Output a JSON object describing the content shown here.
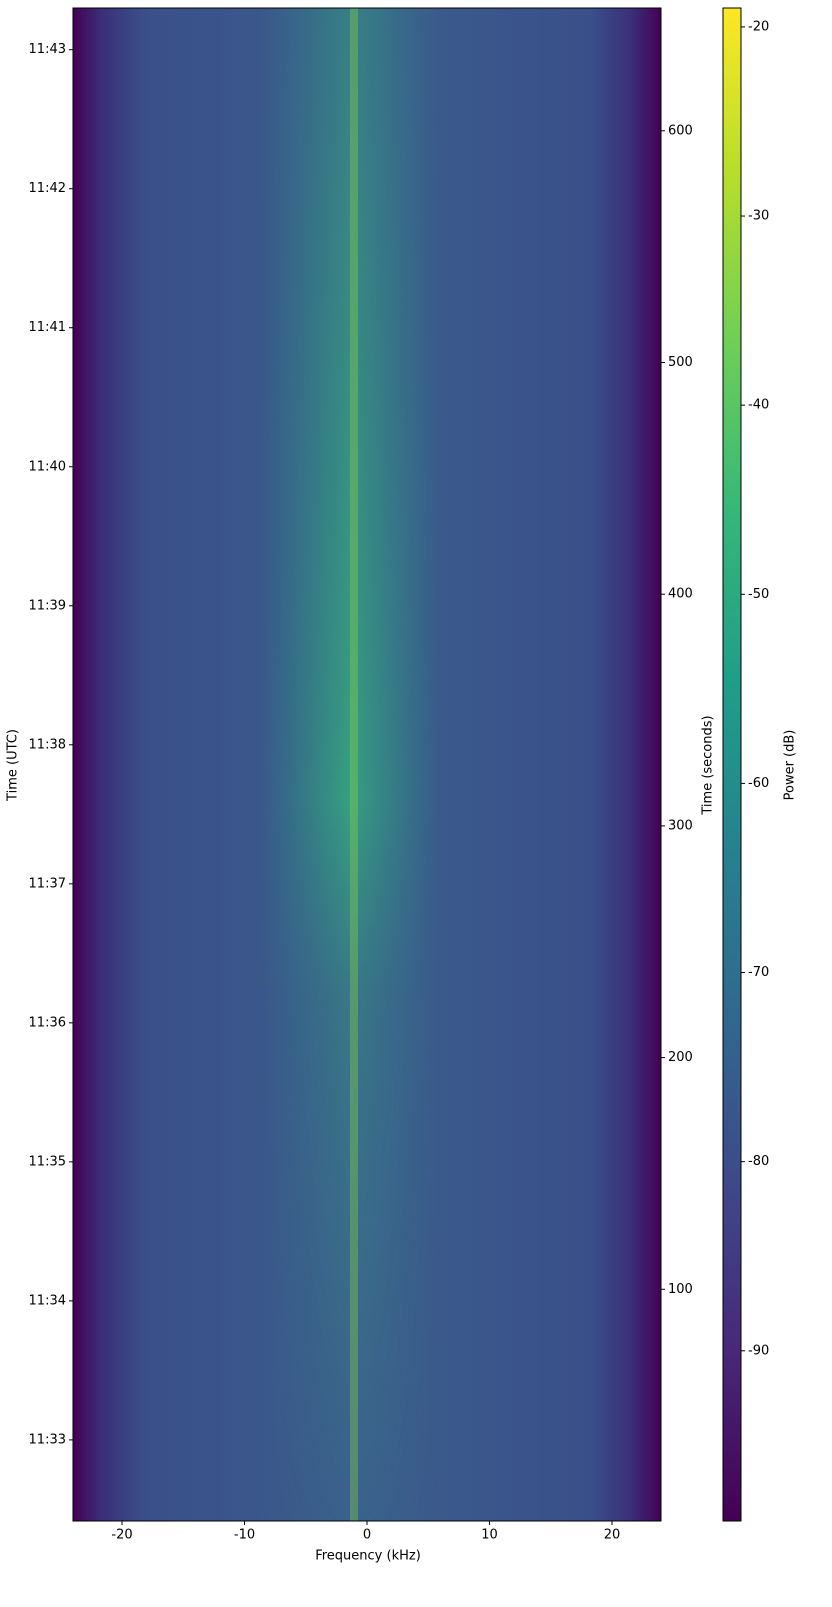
{
  "chart_data": {
    "type": "spectrogram",
    "xlabel": "Frequency (kHz)",
    "ylabel": "Time (UTC)",
    "y2label": "Time (seconds)",
    "colorbar_label": "Power (dB)",
    "colormap": "viridis",
    "xlim": [
      -24,
      24
    ],
    "xticks": [
      -20,
      -10,
      0,
      10,
      20
    ],
    "ylim": [
      0,
      653
    ],
    "yticks": [
      {
        "value": 35,
        "label": "11:33"
      },
      {
        "value": 95,
        "label": "11:34"
      },
      {
        "value": 155,
        "label": "11:35"
      },
      {
        "value": 215,
        "label": "11:36"
      },
      {
        "value": 275,
        "label": "11:37"
      },
      {
        "value": 335,
        "label": "11:38"
      },
      {
        "value": 395,
        "label": "11:39"
      },
      {
        "value": 455,
        "label": "11:40"
      },
      {
        "value": 515,
        "label": "11:41"
      },
      {
        "value": 575,
        "label": "11:42"
      },
      {
        "value": 635,
        "label": "11:43"
      }
    ],
    "y2lim": [
      0,
      653
    ],
    "y2ticks": [
      100,
      200,
      300,
      400,
      500,
      600
    ],
    "clim": [
      -99,
      -19
    ],
    "cticks": [
      -20,
      -30,
      -40,
      -50,
      -60,
      -70,
      -80,
      -90
    ]
  }
}
